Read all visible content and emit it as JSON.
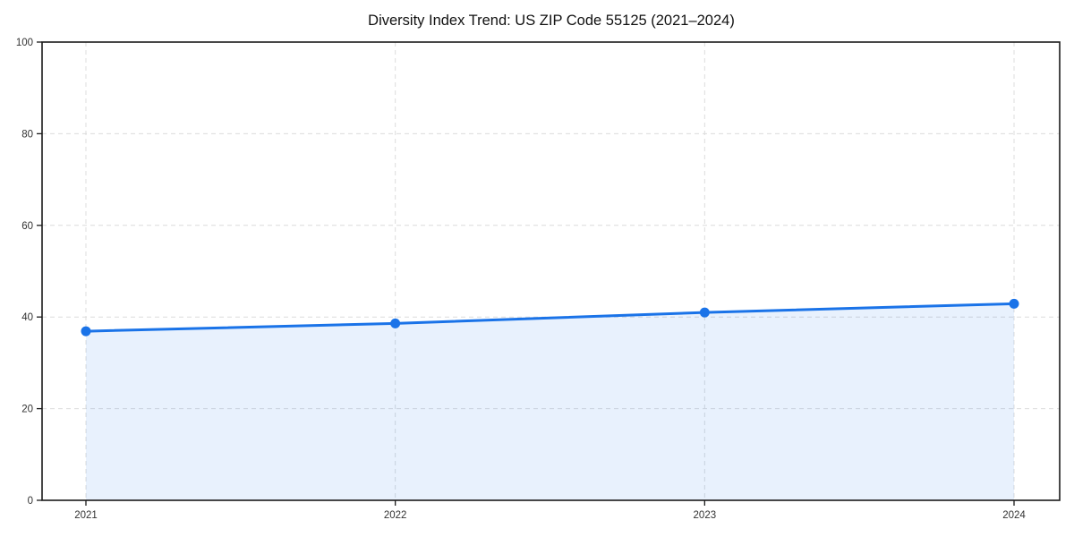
{
  "title": "Diversity Index Trend: US ZIP Code 55125 (2021–2024)",
  "chart_data": {
    "type": "area",
    "title": "Diversity Index Trend: US ZIP Code 55125 (2021–2024)",
    "x": [
      "2021",
      "2022",
      "2023",
      "2024"
    ],
    "series": [
      {
        "name": "Diversity Index",
        "values": [
          36.9,
          38.6,
          41.0,
          42.9
        ]
      }
    ],
    "xlabel": "",
    "ylabel": "",
    "ylim": [
      0,
      100
    ],
    "yticks": [
      0,
      20,
      40,
      60,
      80,
      100
    ],
    "grid": "dashed",
    "legend_position": "none",
    "marker": "circle",
    "colors": {
      "line": "#1a73e8",
      "marker": "#1a73e8",
      "fill": "#1a73e8",
      "fill_opacity": 0.1,
      "grid": "#dcdcdc",
      "axis": "#1a1a1a",
      "tick_label": "#333333",
      "title": "#111111",
      "background": "#ffffff"
    }
  }
}
